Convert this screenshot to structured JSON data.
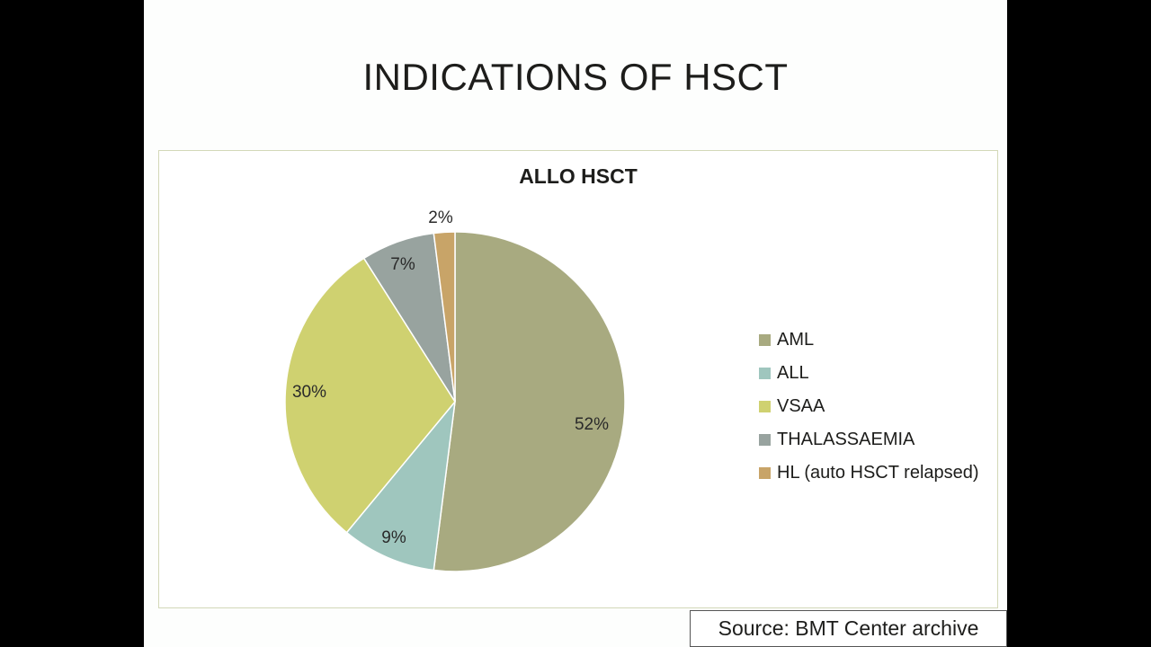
{
  "slide": {
    "title": "INDICATIONS OF HSCT",
    "source": "Source: BMT Center archive"
  },
  "chart_data": {
    "type": "pie",
    "title": "ALLO HSCT",
    "categories": [
      "AML",
      "ALL",
      "VSAA",
      "THALASSAEMIA",
      "HL (auto HSCT relapsed)"
    ],
    "values": [
      52,
      9,
      30,
      7,
      2
    ],
    "labels": [
      "52%",
      "9%",
      "30%",
      "7%",
      "2%"
    ],
    "colors": [
      "#a8aa80",
      "#9fc6be",
      "#cfd170",
      "#98a39f",
      "#c8a468"
    ],
    "legend_position": "right",
    "start_angle_deg": 0,
    "direction": "clockwise"
  }
}
